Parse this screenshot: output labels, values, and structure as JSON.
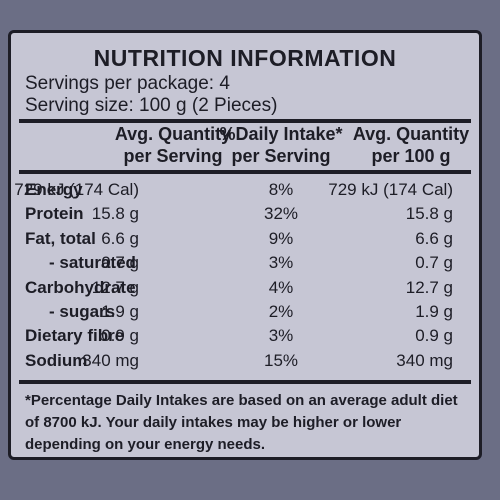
{
  "title": "NUTRITION INFORMATION",
  "servings_per_package": "Servings per package: 4",
  "serving_size": "Serving size: 100 g (2 Pieces)",
  "columns": [
    {
      "line1": "Avg. Quantity",
      "line2": "per Serving"
    },
    {
      "line1": "%Daily Intake*",
      "line2": "per Serving"
    },
    {
      "line1": "Avg. Quantity",
      "line2": "per 100 g"
    }
  ],
  "rows": [
    {
      "name": "Energy",
      "per_serving": "729 kJ (174 Cal)",
      "daily_intake": "8%",
      "per_100g": "729 kJ (174 Cal)"
    },
    {
      "name": "Protein",
      "per_serving": "15.8 g",
      "daily_intake": "32%",
      "per_100g": "15.8 g"
    },
    {
      "name": "Fat, total",
      "per_serving": "6.6 g",
      "daily_intake": "9%",
      "per_100g": "6.6 g"
    },
    {
      "name": "- saturated",
      "per_serving": "0.7 g",
      "daily_intake": "3%",
      "per_100g": "0.7 g"
    },
    {
      "name": "Carbohydrate",
      "per_serving": "12.7 g",
      "daily_intake": "4%",
      "per_100g": "12.7 g"
    },
    {
      "name": "- sugars",
      "per_serving": "1.9 g",
      "daily_intake": "2%",
      "per_100g": "1.9 g"
    },
    {
      "name": "Dietary fibre",
      "per_serving": "0.9 g",
      "daily_intake": "3%",
      "per_100g": "0.9 g"
    },
    {
      "name": "Sodium",
      "per_serving": "340 mg",
      "daily_intake": "15%",
      "per_100g": "340 mg"
    }
  ],
  "footnote": "*Percentage Daily Intakes are based on an average adult diet of 8700 kJ. Your daily intakes may be higher or lower depending on your energy needs."
}
